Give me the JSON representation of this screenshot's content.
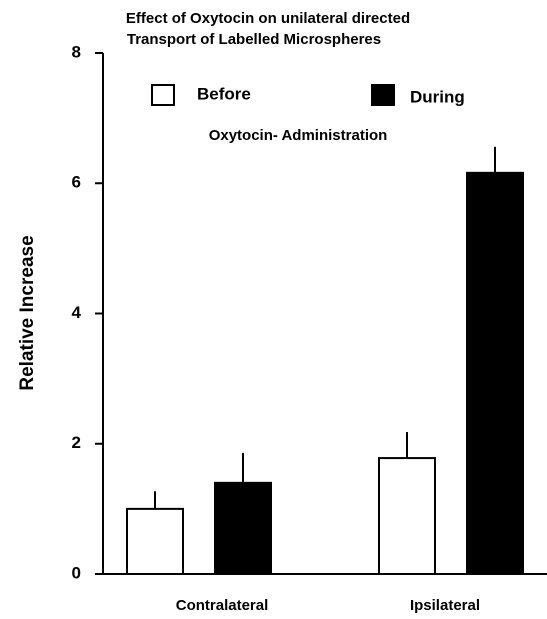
{
  "chart_data": {
    "type": "bar",
    "title": [
      "Effect  of  Oxytocin on unilateral directed",
      "Transport  of  Labelled  Microspheres"
    ],
    "annotation": "Oxytocin- Administration",
    "y_label": "Relative Increase",
    "categories": [
      "Contralateral",
      "Ipsilateral"
    ],
    "series": [
      {
        "name": "Before",
        "color": "#ffffff",
        "values": [
          1.0,
          1.78
        ],
        "errors": [
          0.27,
          0.4
        ]
      },
      {
        "name": "During",
        "color": "#000000",
        "values": [
          1.4,
          6.16
        ],
        "errors": [
          0.46,
          0.4
        ]
      }
    ],
    "ylim": [
      0,
      8
    ],
    "yticks": [
      0,
      2,
      4,
      6,
      8
    ]
  }
}
